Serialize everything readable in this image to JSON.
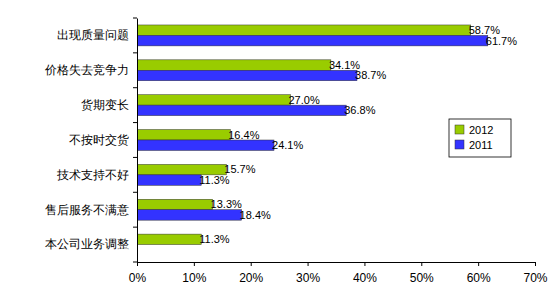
{
  "chart_data": {
    "type": "bar",
    "orientation": "horizontal",
    "categories": [
      "出现质量问题",
      "价格失去竞争力",
      "货期变长",
      "不按时交货",
      "技术支持不好",
      "售后服务不满意",
      "本公司业务调整"
    ],
    "series": [
      {
        "name": "2012",
        "color": "#99cc00",
        "values": [
          58.7,
          34.1,
          27.0,
          16.4,
          15.7,
          13.3,
          11.3
        ],
        "value_labels": [
          "58.7%",
          "34.1%",
          "27.0%",
          "16.4%",
          "15.7%",
          "13.3%",
          "11.3%"
        ]
      },
      {
        "name": "2011",
        "color": "#3333ff",
        "values": [
          61.7,
          38.7,
          36.8,
          24.1,
          11.3,
          18.4,
          null
        ],
        "value_labels": [
          "61.7%",
          "38.7%",
          "36.8%",
          "24.1%",
          "11.3%",
          "18.4%",
          null
        ]
      }
    ],
    "xlim": [
      0,
      70
    ],
    "xticks": [
      {
        "value": 0,
        "label": "0%"
      },
      {
        "value": 10,
        "label": "10%"
      },
      {
        "value": 20,
        "label": "20%"
      },
      {
        "value": 30,
        "label": "30%"
      },
      {
        "value": 40,
        "label": "40%"
      },
      {
        "value": 50,
        "label": "50%"
      },
      {
        "value": 60,
        "label": "60%"
      },
      {
        "value": 70,
        "label": "70%"
      }
    ],
    "grid": false,
    "data_labels": true,
    "legend": "right"
  }
}
